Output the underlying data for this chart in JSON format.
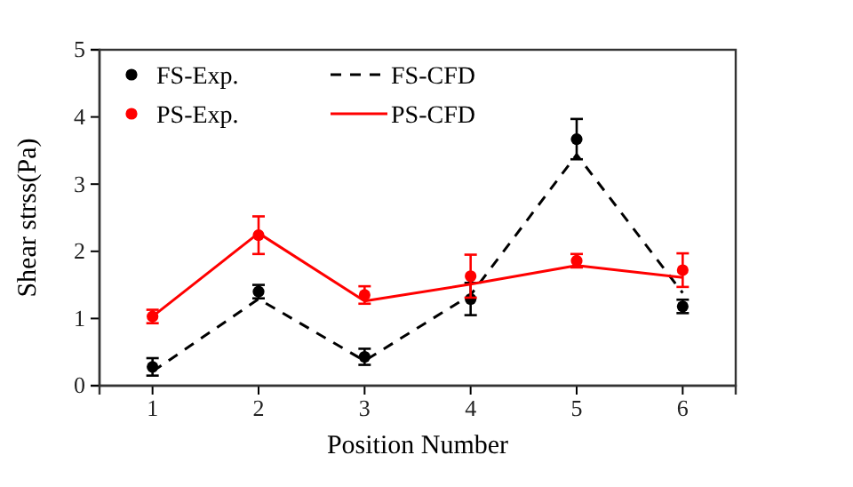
{
  "chart_data": {
    "type": "line",
    "xlabel": "Position Number",
    "ylabel": "Shear strss(Pa)",
    "x": [
      1,
      2,
      3,
      4,
      5,
      6
    ],
    "xlim": [
      0.5,
      6.5
    ],
    "xticks": [
      1,
      2,
      3,
      4,
      5,
      6
    ],
    "ylim": [
      0,
      5
    ],
    "yticks": [
      0,
      1,
      2,
      3,
      4,
      5
    ],
    "grid": false,
    "legend": "top left",
    "series": [
      {
        "name": "FS-Exp.",
        "type": "scatter",
        "color": "#000000",
        "marker": "circle",
        "values": [
          0.28,
          1.4,
          0.43,
          1.29,
          3.67,
          1.18
        ],
        "errors": [
          0.13,
          0.1,
          0.12,
          0.24,
          0.3,
          0.1
        ]
      },
      {
        "name": "FS-CFD",
        "color": "#000000",
        "line_style": "dashed",
        "marker": "none",
        "values": [
          0.21,
          1.29,
          0.37,
          1.35,
          3.44,
          1.38
        ]
      },
      {
        "name": "PS-Exp.",
        "type": "scatter",
        "color": "#ff0000",
        "marker": "circle",
        "values": [
          1.03,
          2.24,
          1.35,
          1.63,
          1.86,
          1.72
        ],
        "errors": [
          0.1,
          0.28,
          0.13,
          0.32,
          0.1,
          0.25
        ]
      },
      {
        "name": "PS-CFD",
        "color": "#ff0000",
        "line_style": "solid",
        "marker": "none",
        "values": [
          1.03,
          2.27,
          1.26,
          1.51,
          1.79,
          1.61
        ]
      }
    ]
  }
}
